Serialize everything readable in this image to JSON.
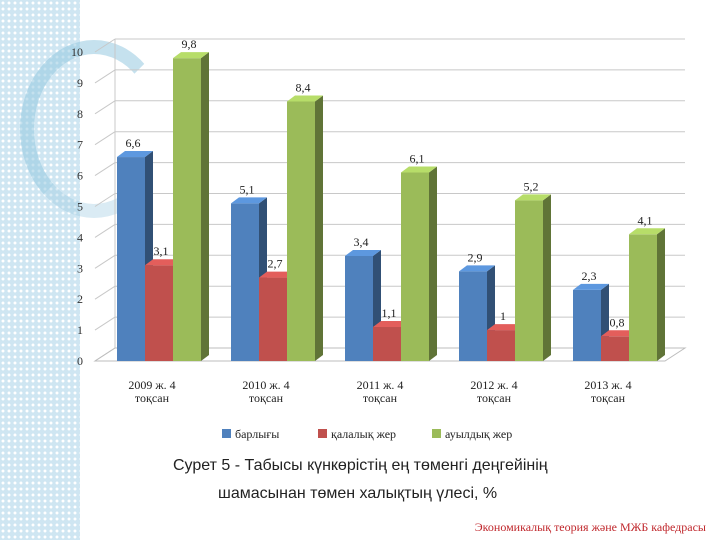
{
  "chart_data": {
    "type": "bar",
    "categories": [
      "2009 ж. 4\nтоқсан",
      "2010 ж. 4\nтоқсан",
      "2011 ж. 4\nтоқсан",
      "2012 ж. 4\nтоқсан",
      "2013 ж. 4\nтоқсан"
    ],
    "series": [
      {
        "name": "барлығы",
        "values": [
          6.6,
          5.1,
          3.4,
          2.9,
          2.3
        ],
        "labels": [
          "6,6",
          "5,1",
          "3,4",
          "2,9",
          "2,3"
        ],
        "color": "#4f81bd"
      },
      {
        "name": "қалалық жер",
        "values": [
          3.1,
          2.7,
          1.1,
          1,
          0.8
        ],
        "labels": [
          "3,1",
          "2,7",
          "1,1",
          "1",
          "0,8"
        ],
        "color": "#c0504d"
      },
      {
        "name": "ауылдық жер",
        "values": [
          9.8,
          8.4,
          6.1,
          5.2,
          4.1
        ],
        "labels": [
          "9,8",
          "8,4",
          "6,1",
          "5,2",
          "4,1"
        ],
        "color": "#9bbb59"
      }
    ],
    "yticks": [
      "0",
      "1",
      "2",
      "3",
      "4",
      "5",
      "6",
      "7",
      "8",
      "9",
      "10"
    ],
    "ylim": [
      0,
      10
    ],
    "grid": true,
    "legend": "bottom",
    "style": "3d-clustered-column"
  },
  "caption": {
    "line1": "Сурет 5 - Табысы  күнкөрістің ең төменгі деңгейінің",
    "line2": "шамасынан төмен халықтың үлесі, %"
  },
  "footer": "Экономикалық теория және МЖБ кафедрасы"
}
